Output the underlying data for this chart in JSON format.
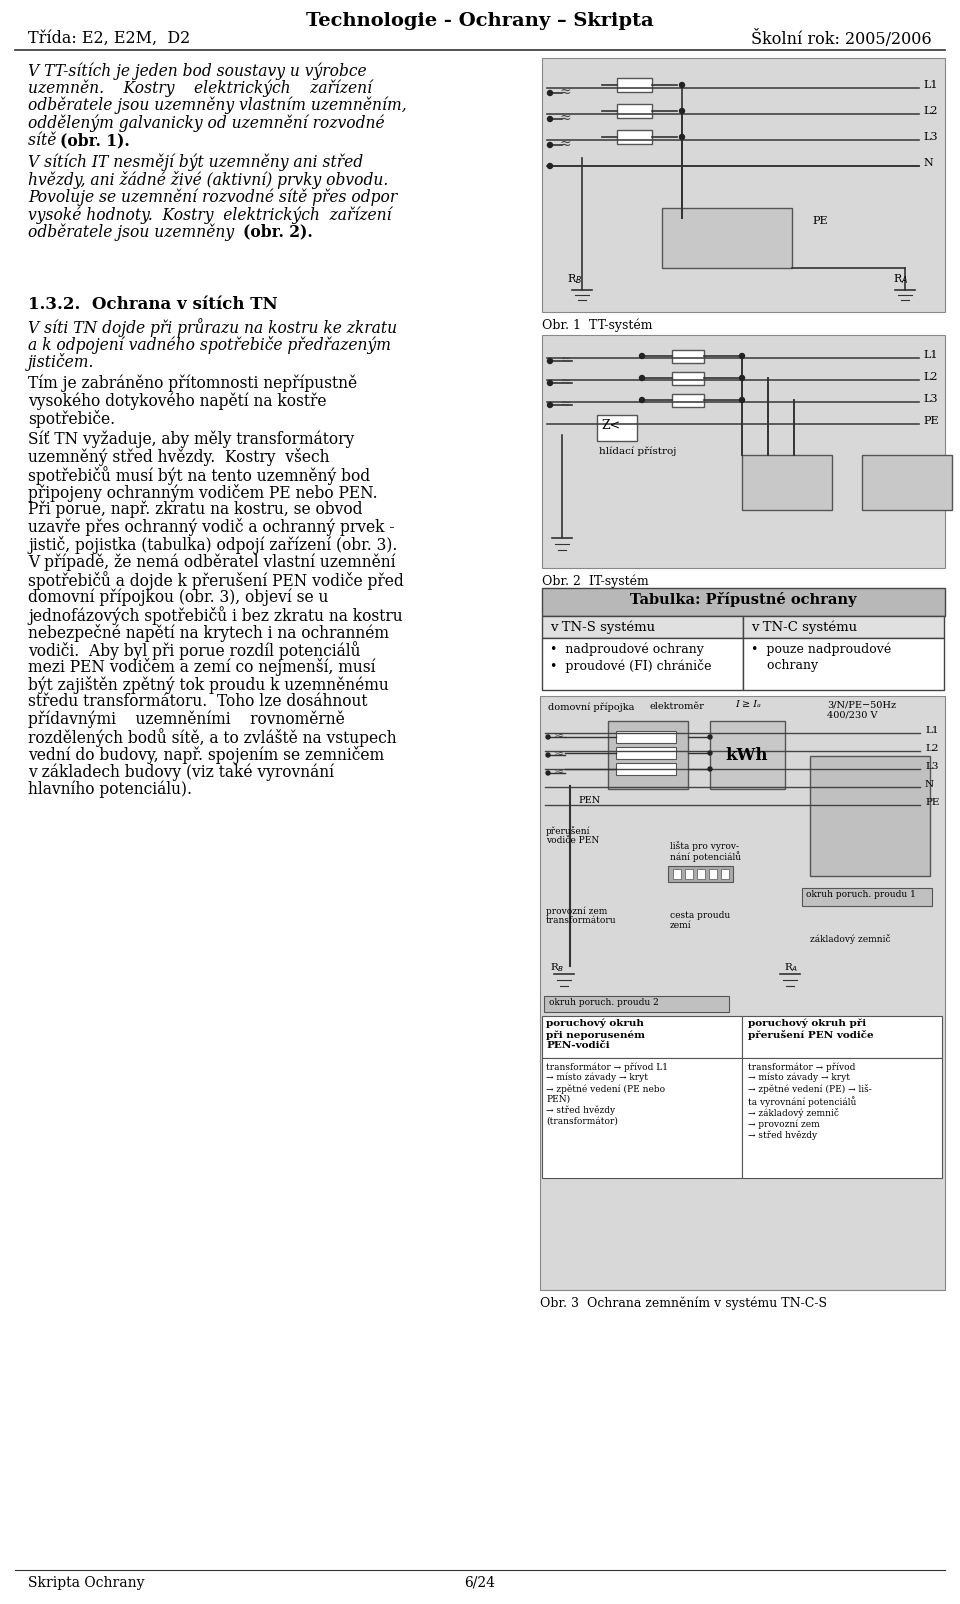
{
  "title": "Technologie - Ochrany – Skripta",
  "left_header": "Třída: E2, E2M,  D2",
  "right_header": "Školní rok: 2005/2006",
  "footer_left": "Skripta Ochrany",
  "footer_center": "6/24",
  "bg_color": "#ffffff",
  "diagram_bg": "#d8d8d8",
  "diagram_bg2": "#c8c8c8",
  "table_header_bg": "#b8b8b8",
  "table_row_bg": "#ffffff",
  "obr1_label": "Obr. 1  TT-systém",
  "obr2_label": "Obr. 2  IT-systém",
  "obr3_label": "Obr. 3  Ochrana zemněním v systému TN-C-S",
  "table_tit": "Tabulka: Přípustné ochrany",
  "table_col1": "v TN-S systému",
  "table_col2": "v TN-C systému",
  "table_r1c1": "•  nadproudové ochrany\n•  proudové (FI) chrániče",
  "table_r1c2": "•  pouze nadproudové\n    ochrany",
  "p1_lines": [
    "V TT-sítích je jeden bod soustavy u výrobce",
    "uzemněn.    Kostry    elektrických    zařízení",
    "odběratele jsou uzemněny vlastním uzemněním,",
    "odděleným galvanicky od uzemnění rozvodné",
    "sítě (obr. 1)."
  ],
  "p2_lines": [
    "V sítích IT nesmějí být uzemněny ani střed",
    "hvězdy, ani žádné živé (aktivní) prvky obvodu.",
    "Povoluje se uzemnění rozvodné sítě přes odpor",
    "vysoké hodnoty.  Kostry  elektrických  zařízení",
    "odběratele jsou uzemněny"
  ],
  "p2_bold_end": "(obr. 2).",
  "sec_heading": "1.3.2.  Ochrana v sítích TN",
  "sec_p1_lines": [
    "V síti TN dojde při průrazu na kostru ke zkratu",
    "a k odpojení vadného spotřebiče předřazeným",
    "jističem."
  ],
  "sec_p2_lines": [
    "Tím je zabráněno přítomnosti nepřípustně",
    "vysokého dotykového napětí na kostře",
    "spotřebiče."
  ],
  "body2_lines": [
    "Síť TN vyžaduje, aby měly transformátory",
    "uzemněný střed hvězdy.  Kostry  všech",
    "spotřebičů musí být na tento uzemněný bod",
    "připojeny ochranným vodičem PE nebo PEN.",
    "Při porue, např. zkratu na kostru, se obvod",
    "uzavře přes ochranný vodič a ochranný prvek -",
    "jistič, pojistka (tabulka) odpojí zařízení",
    "V případě, že nemá odběratel vlastní uzemnění",
    "spotřebičů a dojde k přerušení PEN vodiče před",
    "domovní přípojkou",
    "jednofázových spotřebičů i bez zkratu na kostru",
    "nebezpečné napětí na krytech i na ochranném",
    "vodiči.  Aby byl při porue rozdíl potenciálů",
    "mezi PEN vodičem a zemí co nejmenší, musí",
    "být zajištěn zpětný tok proudu k uzemněnému",
    "středu transformátoru.  Toho lze dosáhnout",
    "přídavnými    uzemněními    rovnoměrně",
    "rozdělených bodů sítě, a to zvláště na vstupech",
    "vední do budovy, např. spojením se zemničem",
    "v základech budovy (viz také vyrovnání",
    "hlavního potenciálu)."
  ]
}
